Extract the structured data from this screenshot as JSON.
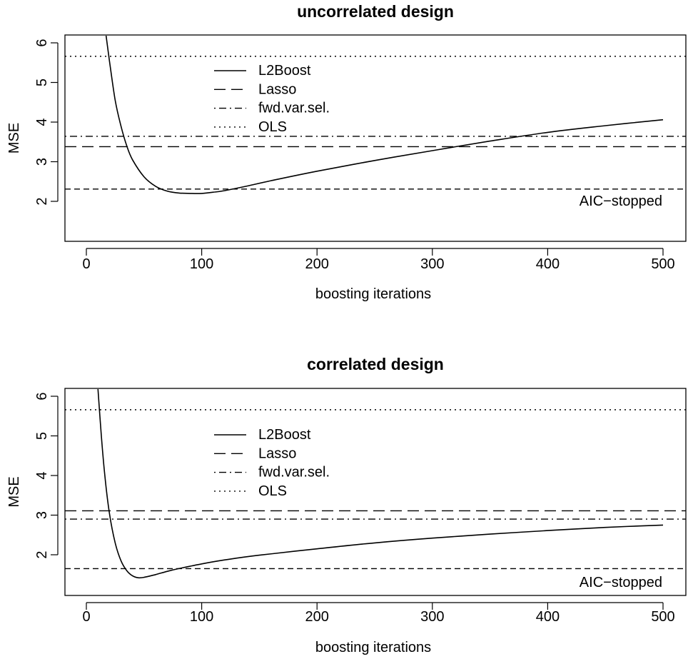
{
  "chart_data": [
    {
      "type": "line",
      "title": "uncorrelated design",
      "xlabel": "boosting iterations",
      "ylabel": "MSE",
      "xlim": [
        -20,
        520
      ],
      "ylim": [
        1,
        6.2
      ],
      "xticks": [
        0,
        100,
        200,
        300,
        400,
        500
      ],
      "yticks": [
        2,
        3,
        4,
        5,
        6
      ],
      "legend_position": "top-left inside",
      "legend": [
        "L2Boost",
        "Lasso",
        "fwd.var.sel.",
        "OLS"
      ],
      "annotation": "AIC−stopped",
      "series": [
        {
          "name": "L2Boost",
          "style": "solid",
          "x": [
            17,
            20,
            25,
            30,
            35,
            40,
            50,
            60,
            70,
            80,
            90,
            100,
            110,
            120,
            140,
            160,
            200,
            250,
            300,
            350,
            400,
            450,
            500
          ],
          "y": [
            6.2,
            5.55,
            4.55,
            3.9,
            3.4,
            3.05,
            2.62,
            2.38,
            2.26,
            2.21,
            2.2,
            2.2,
            2.23,
            2.27,
            2.39,
            2.52,
            2.76,
            3.03,
            3.28,
            3.52,
            3.74,
            3.91,
            4.06
          ]
        },
        {
          "name": "Lasso",
          "style": "longdash",
          "value": 3.38
        },
        {
          "name": "fwd.var.sel.",
          "style": "dotdash",
          "value": 3.64
        },
        {
          "name": "OLS",
          "style": "dotted",
          "value": 5.66
        },
        {
          "name": "AIC−stopped",
          "style": "dashed",
          "value": 2.31
        }
      ]
    },
    {
      "type": "line",
      "title": "correlated design",
      "xlabel": "boosting iterations",
      "ylabel": "MSE",
      "xlim": [
        -20,
        520
      ],
      "ylim": [
        1.1,
        6.2
      ],
      "xticks": [
        0,
        100,
        200,
        300,
        400,
        500
      ],
      "yticks": [
        2,
        3,
        4,
        5,
        6
      ],
      "legend_position": "top-left inside",
      "legend": [
        "L2Boost",
        "Lasso",
        "fwd.var.sel.",
        "OLS"
      ],
      "annotation": "AIC−stopped",
      "series": [
        {
          "name": "L2Boost",
          "style": "solid",
          "x": [
            10,
            13,
            16,
            20,
            25,
            30,
            35,
            40,
            45,
            50,
            60,
            70,
            80,
            100,
            120,
            150,
            200,
            250,
            300,
            350,
            400,
            450,
            500
          ],
          "y": [
            6.2,
            5.0,
            4.0,
            3.05,
            2.3,
            1.85,
            1.6,
            1.47,
            1.42,
            1.43,
            1.5,
            1.58,
            1.65,
            1.77,
            1.87,
            1.99,
            2.15,
            2.3,
            2.42,
            2.52,
            2.61,
            2.69,
            2.75
          ]
        },
        {
          "name": "Lasso",
          "style": "longdash",
          "value": 3.11
        },
        {
          "name": "fwd.var.sel.",
          "style": "dotdash",
          "value": 2.9
        },
        {
          "name": "OLS",
          "style": "dotted",
          "value": 5.66
        },
        {
          "name": "AIC−stopped",
          "style": "dashed",
          "value": 1.65
        }
      ]
    }
  ]
}
